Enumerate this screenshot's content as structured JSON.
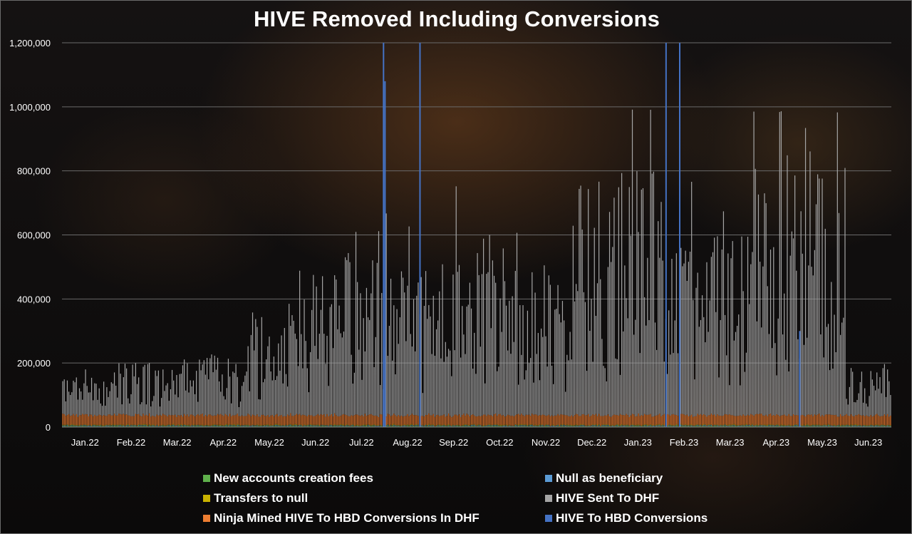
{
  "chart_data": {
    "type": "bar",
    "stacked": true,
    "title": "HIVE Removed Including Conversions",
    "xlabel": "",
    "ylabel": "",
    "ylim": [
      0,
      1200000
    ],
    "y_ticks": [
      "0",
      "200,000",
      "400,000",
      "600,000",
      "800,000",
      "1,000,000",
      "1,200,000"
    ],
    "y_tick_values": [
      0,
      200000,
      400000,
      600000,
      800000,
      1000000,
      1200000
    ],
    "grid": true,
    "legend_position": "bottom",
    "x_ticks": [
      "Jan.22",
      "Feb.22",
      "Mar.22",
      "Apr.22",
      "May.22",
      "Jun.22",
      "Jul.22",
      "Aug.22",
      "Sep.22",
      "Oct.22",
      "Nov.22",
      "Dec.22",
      "Jan.23",
      "Feb.23",
      "Mar.23",
      "Apr.23",
      "May.23",
      "Jun.23"
    ],
    "x_start": "2022-01-01",
    "x_end": "2023-06-30",
    "series": [
      {
        "name": "New accounts creation fees",
        "color": "#5fb04b",
        "typical_value": 3000
      },
      {
        "name": "Null as beneficiary",
        "color": "#5b9bd5",
        "typical_value": 2000
      },
      {
        "name": "Transfers to null",
        "color": "#c9b200",
        "typical_value": 2000
      },
      {
        "name": "HIVE Sent To DHF",
        "color": "#a5a5a5",
        "daily_average_by_month": [
          80000,
          110000,
          95000,
          110000,
          200000,
          270000,
          300000,
          260000,
          280000,
          330000,
          270000,
          420000,
          450000,
          300000,
          330000,
          450000,
          450000,
          90000
        ]
      },
      {
        "name": "Ninja Mined HIVE To HBD Conversions In DHF",
        "color": "#ed7d31",
        "typical_value": 30000
      },
      {
        "name": "HIVE To HBD Conversions",
        "color": "#4472c4",
        "notable_spikes": [
          {
            "x": "2022-07-31",
            "y": 1200000
          },
          {
            "x": "2022-08-24",
            "y": 1200000
          },
          {
            "x": "2023-02-02",
            "y": 1200000
          },
          {
            "x": "2023-02-11",
            "y": 1200000
          },
          {
            "x": "2022-08-01",
            "y": 1080000
          },
          {
            "x": "2023-05-01",
            "y": 300000
          }
        ]
      }
    ]
  }
}
